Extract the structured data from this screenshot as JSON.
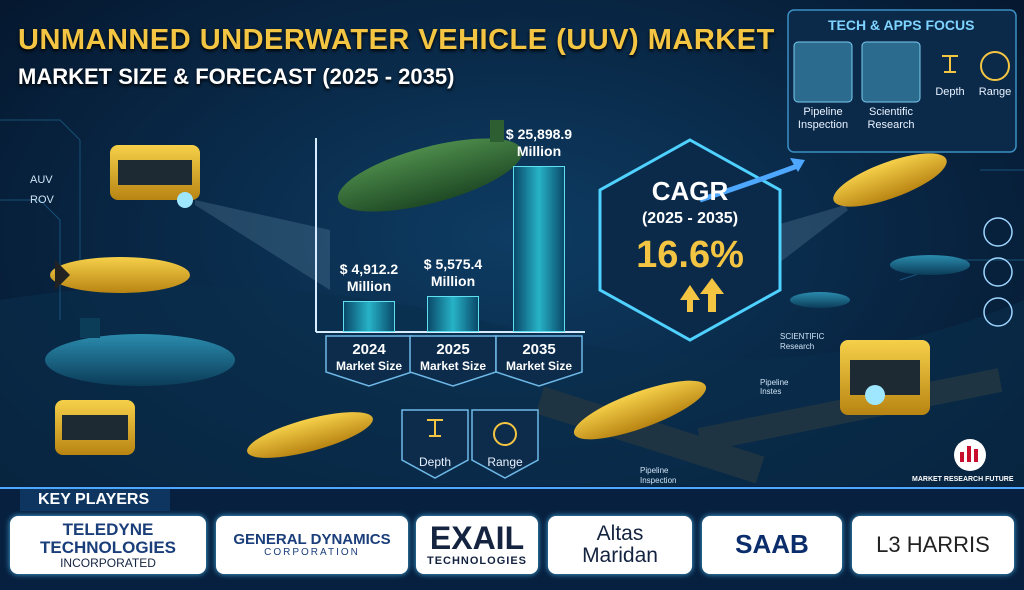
{
  "title": "UNMANNED UNDERWATER VEHICLE (UUV) MARKET",
  "subtitle": "MARKET SIZE & FORECAST (2025 - 2035)",
  "chart_data": {
    "type": "bar",
    "categories": [
      "2024",
      "2025",
      "2035"
    ],
    "category_caption": "Market Size",
    "values": [
      4912.2,
      5575.4,
      25898.9
    ],
    "value_labels": [
      "$ 4,912.2 Million",
      "$ 5,575.4 Million",
      "$ 25,898.9 Million"
    ],
    "ylim": [
      0,
      30000
    ],
    "color": "#27b3c8"
  },
  "cagr": {
    "label": "CAGR",
    "period": "(2025 - 2035)",
    "value": "16.6%"
  },
  "tech_focus": {
    "title": "TECH & APPS FOCUS",
    "items": [
      "Pipeline Inspection",
      "Scientific Research",
      "Depth",
      "Range"
    ]
  },
  "badges": [
    "Depth",
    "Range"
  ],
  "labels": {
    "auv": "AUV",
    "rov": "ROV",
    "scientific": "SCIENTIFIC Research",
    "pipeline_1": "Pipeline Instes",
    "pipeline_2": "Pipeline Inspection"
  },
  "brand": "MARKET RESEARCH FUTURE",
  "key_players": {
    "title": "KEY PLAYERS",
    "names": [
      [
        "TELEDYNE",
        "TECHNOLOGIES",
        "INCORPORATED"
      ],
      [
        "GENERAL DYNAMICS",
        "CORPORATION"
      ],
      [
        "EXAIL",
        "TECHNOLOGIES"
      ],
      [
        "Altas",
        "Maridan"
      ],
      [
        "SAAB"
      ],
      [
        "L3 HARRIS"
      ]
    ]
  }
}
